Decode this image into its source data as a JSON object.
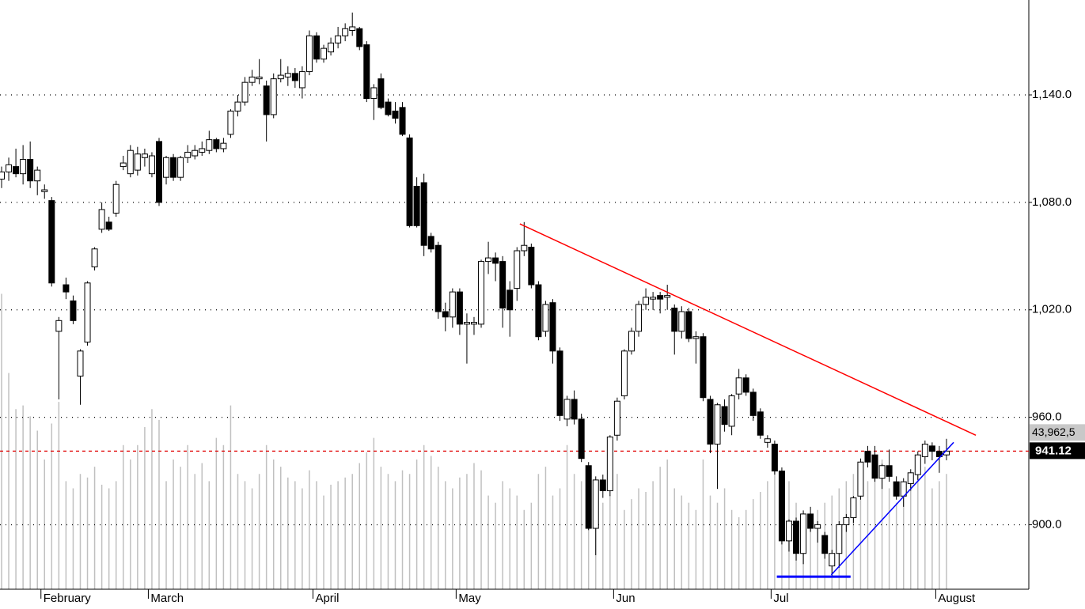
{
  "chart_data": {
    "type": "candlestick",
    "open": [
      1093,
      1097,
      1100,
      1096,
      1104,
      1092,
      1086,
      1081,
      1008,
      1034,
      1025,
      983,
      1002,
      1044,
      1065,
      1069,
      1074,
      1100,
      1096,
      1098,
      1105,
      1096,
      1114,
      1094,
      1105,
      1094,
      1105,
      1106,
      1108,
      1109,
      1115,
      1110,
      1118,
      1131,
      1136,
      1147,
      1149,
      1145,
      1129,
      1149,
      1150,
      1152,
      1144,
      1153,
      1173,
      1160,
      1164,
      1169,
      1173,
      1176,
      1177,
      1168,
      1138,
      1149,
      1136,
      1131,
      1133,
      1116,
      1089,
      1091,
      1061,
      1056,
      1019,
      1016,
      1030,
      1012,
      1012,
      1012,
      1047,
      1049,
      1047,
      1031,
      1032,
      1053,
      1055,
      1034,
      1008,
      1024,
      997,
      959,
      970,
      959,
      933,
      898,
      925,
      919,
      950,
      972,
      997,
      1008,
      1023,
      1026,
      1028,
      1027,
      1021,
      1008,
      1019,
      1004,
      1005,
      970,
      945,
      966,
      955,
      973,
      982,
      974,
      963,
      946,
      945,
      930,
      891,
      902,
      884,
      906,
      898,
      894,
      877,
      884,
      900,
      904,
      916,
      941,
      939,
      926,
      933,
      924,
      916,
      923,
      928,
      938,
      944,
      941,
      939
    ],
    "high": [
      1100,
      1105,
      1110,
      1112,
      1114,
      1100,
      1090,
      1083,
      1016,
      1038,
      1028,
      998,
      1036,
      1055,
      1080,
      1072,
      1092,
      1106,
      1112,
      1111,
      1110,
      1108,
      1116,
      1106,
      1107,
      1106,
      1112,
      1112,
      1114,
      1120,
      1116,
      1116,
      1132,
      1140,
      1150,
      1154,
      1160,
      1148,
      1152,
      1160,
      1156,
      1155,
      1156,
      1176,
      1175,
      1168,
      1172,
      1178,
      1180,
      1186,
      1178,
      1170,
      1146,
      1152,
      1138,
      1136,
      1136,
      1118,
      1094,
      1096,
      1063,
      1058,
      1024,
      1032,
      1032,
      1018,
      1016,
      1048,
      1058,
      1052,
      1050,
      1036,
      1055,
      1069,
      1057,
      1036,
      1025,
      1026,
      999,
      972,
      975,
      962,
      935,
      927,
      928,
      950,
      971,
      998,
      1010,
      1025,
      1032,
      1030,
      1030,
      1034,
      1023,
      1022,
      1021,
      1008,
      1007,
      972,
      968,
      970,
      973,
      987,
      984,
      976,
      965,
      950,
      947,
      932,
      903,
      904,
      908,
      910,
      902,
      896,
      886,
      902,
      906,
      916,
      937,
      944,
      944,
      934,
      942,
      927,
      926,
      931,
      941,
      947,
      946,
      944,
      948
    ],
    "low": [
      1088,
      1092,
      1094,
      1090,
      1088,
      1084,
      1082,
      1033,
      970,
      1026,
      1012,
      967,
      1000,
      1042,
      1063,
      1064,
      1072,
      1098,
      1094,
      1095,
      1100,
      1094,
      1078,
      1090,
      1092,
      1092,
      1102,
      1104,
      1106,
      1107,
      1108,
      1108,
      1116,
      1128,
      1134,
      1145,
      1146,
      1114,
      1127,
      1147,
      1145,
      1144,
      1138,
      1151,
      1158,
      1158,
      1162,
      1166,
      1170,
      1173,
      1165,
      1136,
      1126,
      1132,
      1128,
      1124,
      1117,
      1066,
      1066,
      1050,
      1052,
      1015,
      1008,
      1010,
      1006,
      990,
      1006,
      1010,
      1040,
      1036,
      1010,
      1005,
      1025,
      1050,
      1032,
      1003,
      1005,
      990,
      958,
      955,
      956,
      935,
      897,
      883,
      915,
      916,
      947,
      970,
      995,
      1005,
      1020,
      1020,
      1018,
      1020,
      995,
      1004,
      1002,
      990,
      969,
      940,
      920,
      952,
      950,
      970,
      972,
      958,
      948,
      943,
      928,
      889,
      885,
      880,
      878,
      896,
      890,
      881,
      871,
      876,
      896,
      901,
      914,
      932,
      924,
      920,
      924,
      914,
      910,
      919,
      925,
      934,
      936,
      929,
      936
    ],
    "close": [
      1097,
      1101,
      1096,
      1104,
      1092,
      1098,
      1087,
      1035,
      1014,
      1030,
      1014,
      997,
      1035,
      1054,
      1076,
      1065,
      1090,
      1102,
      1109,
      1107,
      1107,
      1106,
      1080,
      1105,
      1094,
      1105,
      1108,
      1109,
      1110,
      1115,
      1110,
      1113,
      1131,
      1136,
      1147,
      1150,
      1150,
      1129,
      1149,
      1151,
      1152,
      1148,
      1153,
      1173,
      1160,
      1166,
      1169,
      1173,
      1177,
      1178,
      1167,
      1138,
      1144,
      1133,
      1129,
      1127,
      1118,
      1067,
      1067,
      1056,
      1054,
      1019,
      1016,
      1030,
      1012,
      1013,
      1013,
      1047,
      1049,
      1046,
      1021,
      1020,
      1053,
      1056,
      1034,
      1005,
      1023,
      997,
      961,
      970,
      959,
      937,
      898,
      925,
      919,
      949,
      969,
      997,
      1008,
      1023,
      1027,
      1027,
      1026,
      1028,
      1008,
      1019,
      1004,
      1005,
      971,
      945,
      967,
      956,
      972,
      982,
      974,
      961,
      950,
      948,
      930,
      891,
      902,
      884,
      906,
      898,
      900,
      884,
      884,
      900,
      904,
      915,
      935,
      935,
      926,
      933,
      927,
      916,
      924,
      929,
      939,
      945,
      941,
      938,
      941.12
    ],
    "volume": [
      410,
      300,
      250,
      255,
      240,
      220,
      180,
      230,
      260,
      150,
      140,
      160,
      155,
      170,
      145,
      140,
      150,
      200,
      180,
      200,
      225,
      250,
      235,
      150,
      180,
      170,
      200,
      160,
      175,
      150,
      210,
      200,
      255,
      160,
      150,
      140,
      160,
      200,
      180,
      170,
      155,
      150,
      140,
      165,
      150,
      130,
      145,
      150,
      155,
      160,
      175,
      190,
      210,
      170,
      160,
      150,
      165,
      160,
      180,
      200,
      185,
      170,
      150,
      140,
      155,
      160,
      175,
      165,
      130,
      120,
      150,
      140,
      130,
      110,
      120,
      160,
      170,
      130,
      140,
      200,
      160,
      150,
      170,
      140,
      120,
      130,
      160,
      110,
      125,
      140,
      135,
      150,
      170,
      180,
      140,
      130,
      120,
      110,
      180,
      130,
      120,
      140,
      110,
      100,
      110,
      125,
      135,
      150,
      170,
      160,
      150,
      120,
      100,
      95,
      110,
      120,
      130,
      140,
      150,
      160,
      140,
      150,
      170,
      180,
      140,
      120,
      130,
      150,
      160,
      170,
      140,
      150,
      160
    ],
    "vlim": [
      0,
      450
    ],
    "xlim": [
      -0.22,
      143.5
    ],
    "xticks": [
      {
        "value": 5.5,
        "label": "February"
      },
      {
        "value": 20.5,
        "label": "March"
      },
      {
        "value": 43.5,
        "label": "April"
      },
      {
        "value": 63.5,
        "label": "May"
      },
      {
        "value": 85.5,
        "label": "Jun"
      },
      {
        "value": 107.5,
        "label": "Jul"
      },
      {
        "value": 130.5,
        "label": "August"
      }
    ],
    "ylim": [
      864,
      1193
    ],
    "yticks": [
      {
        "value": 900,
        "label": "900.0"
      },
      {
        "value": 960,
        "label": "960.0"
      },
      {
        "value": 1020,
        "label": "1,020.0"
      },
      {
        "value": 1080,
        "label": "1,080.0"
      },
      {
        "value": 1140,
        "label": "1,140.0"
      }
    ],
    "grid": true,
    "up_color": "#ffffff",
    "down_color": "#000000",
    "volume_color": "#c0c0c0",
    "last_label": "941.12",
    "volume_label": "43,962,5",
    "trendlines": [
      {
        "color": "#ff0000",
        "x": [
          72.4,
          136.1
        ],
        "y": [
          1068,
          950
        ]
      },
      {
        "color": "#0000ff",
        "x": [
          115.9,
          133
        ],
        "y": [
          872,
          946
        ]
      },
      {
        "color": "#0000ff",
        "x": [
          108.3,
          118.6
        ],
        "y": [
          871,
          871
        ]
      }
    ]
  }
}
